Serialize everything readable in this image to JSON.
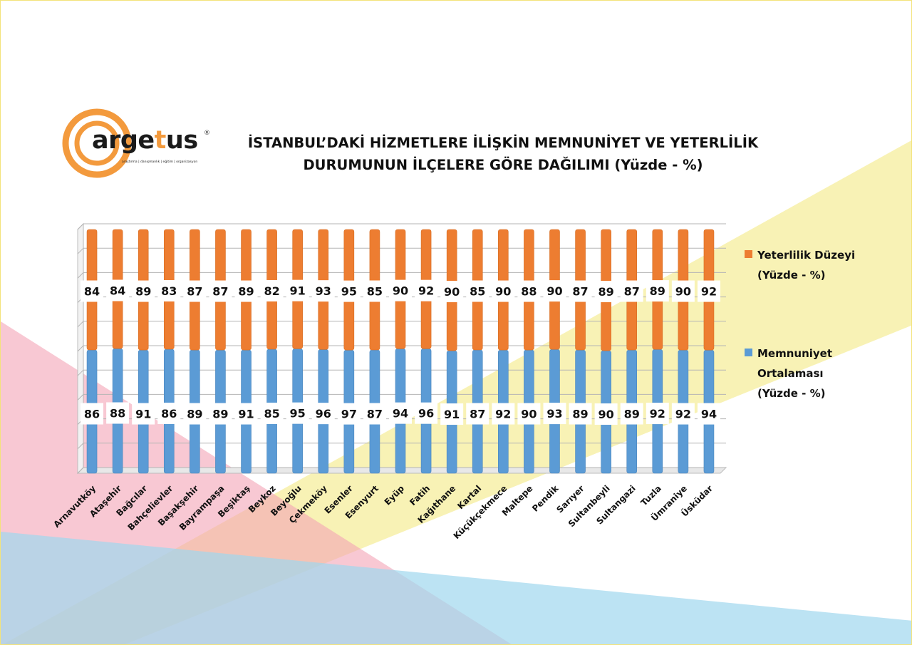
{
  "title_line1": "İSTANBUL’DAKİ HİZMETLERE İLİŞKİN MEMNUNİYET VE YETERLİLİK",
  "title_line2": "DURUMUNUN İLÇELERE GÖRE DAĞILIMI (Yüzde - %)",
  "logo": {
    "text_before": "arge",
    "text_t": "t",
    "text_after": "us",
    "reg": "®",
    "tagline": "araştırma | danışmanlık | eğitim | organizasyon"
  },
  "colors": {
    "yeterlilik": "#ed7d31",
    "memnuniyet": "#5b9bd5",
    "logo_orange": "#f39a3d"
  },
  "chart_data": {
    "type": "bar",
    "stacked": true,
    "categories": [
      "Arnavutköy",
      "Ataşehir",
      "Bağcılar",
      "Bahçelievler",
      "Başakşehir",
      "Bayrampaşa",
      "Beşiktaş",
      "Beykoz",
      "Beyoğlu",
      "Çekmeköy",
      "Esenler",
      "Esenyurt",
      "Eyüp",
      "Fatih",
      "Kağıthane",
      "Kartal",
      "Küçükçekmece",
      "Maltepe",
      "Pendik",
      "Sarıyer",
      "Sultanbeyli",
      "Sultangazi",
      "Tuzla",
      "Ümraniye",
      "Üsküdar"
    ],
    "series": [
      {
        "name": "Memnuniyet Ortalaması (Yüzde - %)",
        "values": [
          86,
          88,
          91,
          86,
          89,
          89,
          91,
          85,
          95,
          96,
          97,
          87,
          94,
          96,
          91,
          87,
          92,
          90,
          93,
          89,
          90,
          89,
          92,
          92,
          94
        ]
      },
      {
        "name": "Yeterlilik Düzeyi (Yüzde - %)",
        "values": [
          84,
          84,
          89,
          83,
          87,
          87,
          89,
          82,
          91,
          93,
          95,
          85,
          90,
          92,
          90,
          85,
          90,
          88,
          90,
          87,
          89,
          87,
          89,
          90,
          92
        ]
      }
    ],
    "legend_position": "right",
    "grid": true
  },
  "legend": {
    "yeterlilik": {
      "line1": "Yeterlilik Düzeyi",
      "line2": "(Yüzde - %)"
    },
    "memnuniyet": {
      "line1": "Memnuniyet",
      "line2": "Ortalaması",
      "line3": "(Yüzde - %)"
    }
  }
}
